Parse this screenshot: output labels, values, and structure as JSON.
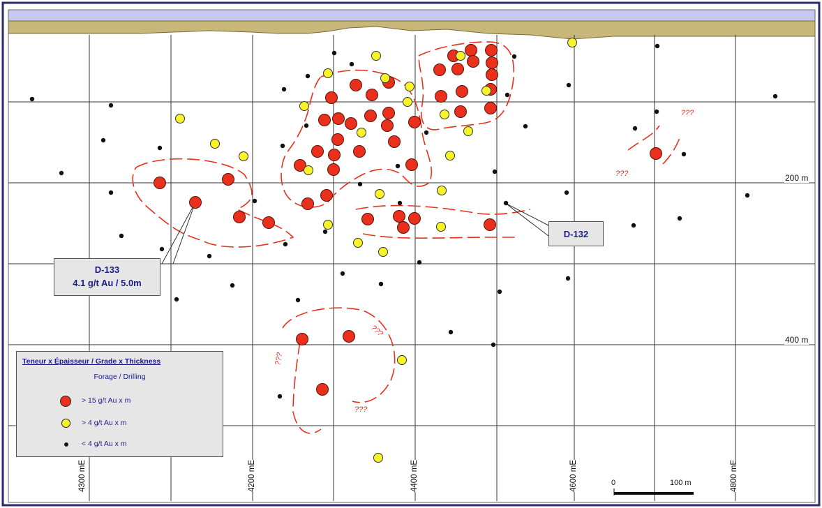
{
  "legend": {
    "title": "Teneur x Épaisseur  /  Grade  x  Thickness",
    "subtitle": "Forage / Drilling",
    "items": [
      {
        "label": "> 15 g/t Au  x  m",
        "color": "#e8301c"
      },
      {
        "label": ">  4  g/t Au  x  m",
        "color": "#f7f32a"
      },
      {
        "label": "<  4  g/t Au  x  m",
        "color": "#111111"
      }
    ]
  },
  "callouts": {
    "d133": {
      "line1": "D-133",
      "line2": "4.1 g/t Au  /  5.0m"
    },
    "d132": {
      "line1": "D-132"
    }
  },
  "depth_labels": {
    "d200": "200 m",
    "d400": "400 m"
  },
  "easting_labels": {
    "e1": "4300 mE",
    "e2": "4200 mE",
    "e3": "4400 mE",
    "e4": "4600 mE",
    "e5": "4800 mE"
  },
  "scale_bar": {
    "zero": "0",
    "end": "100 m"
  },
  "uncertain_label": "???",
  "colors": {
    "surface": "#c9b77a",
    "frame_band": "#c7c9f0",
    "high_grade": "#e8301c",
    "mid_grade": "#f7f32a",
    "low_grade": "#111111",
    "outline": "#e8301c"
  }
}
